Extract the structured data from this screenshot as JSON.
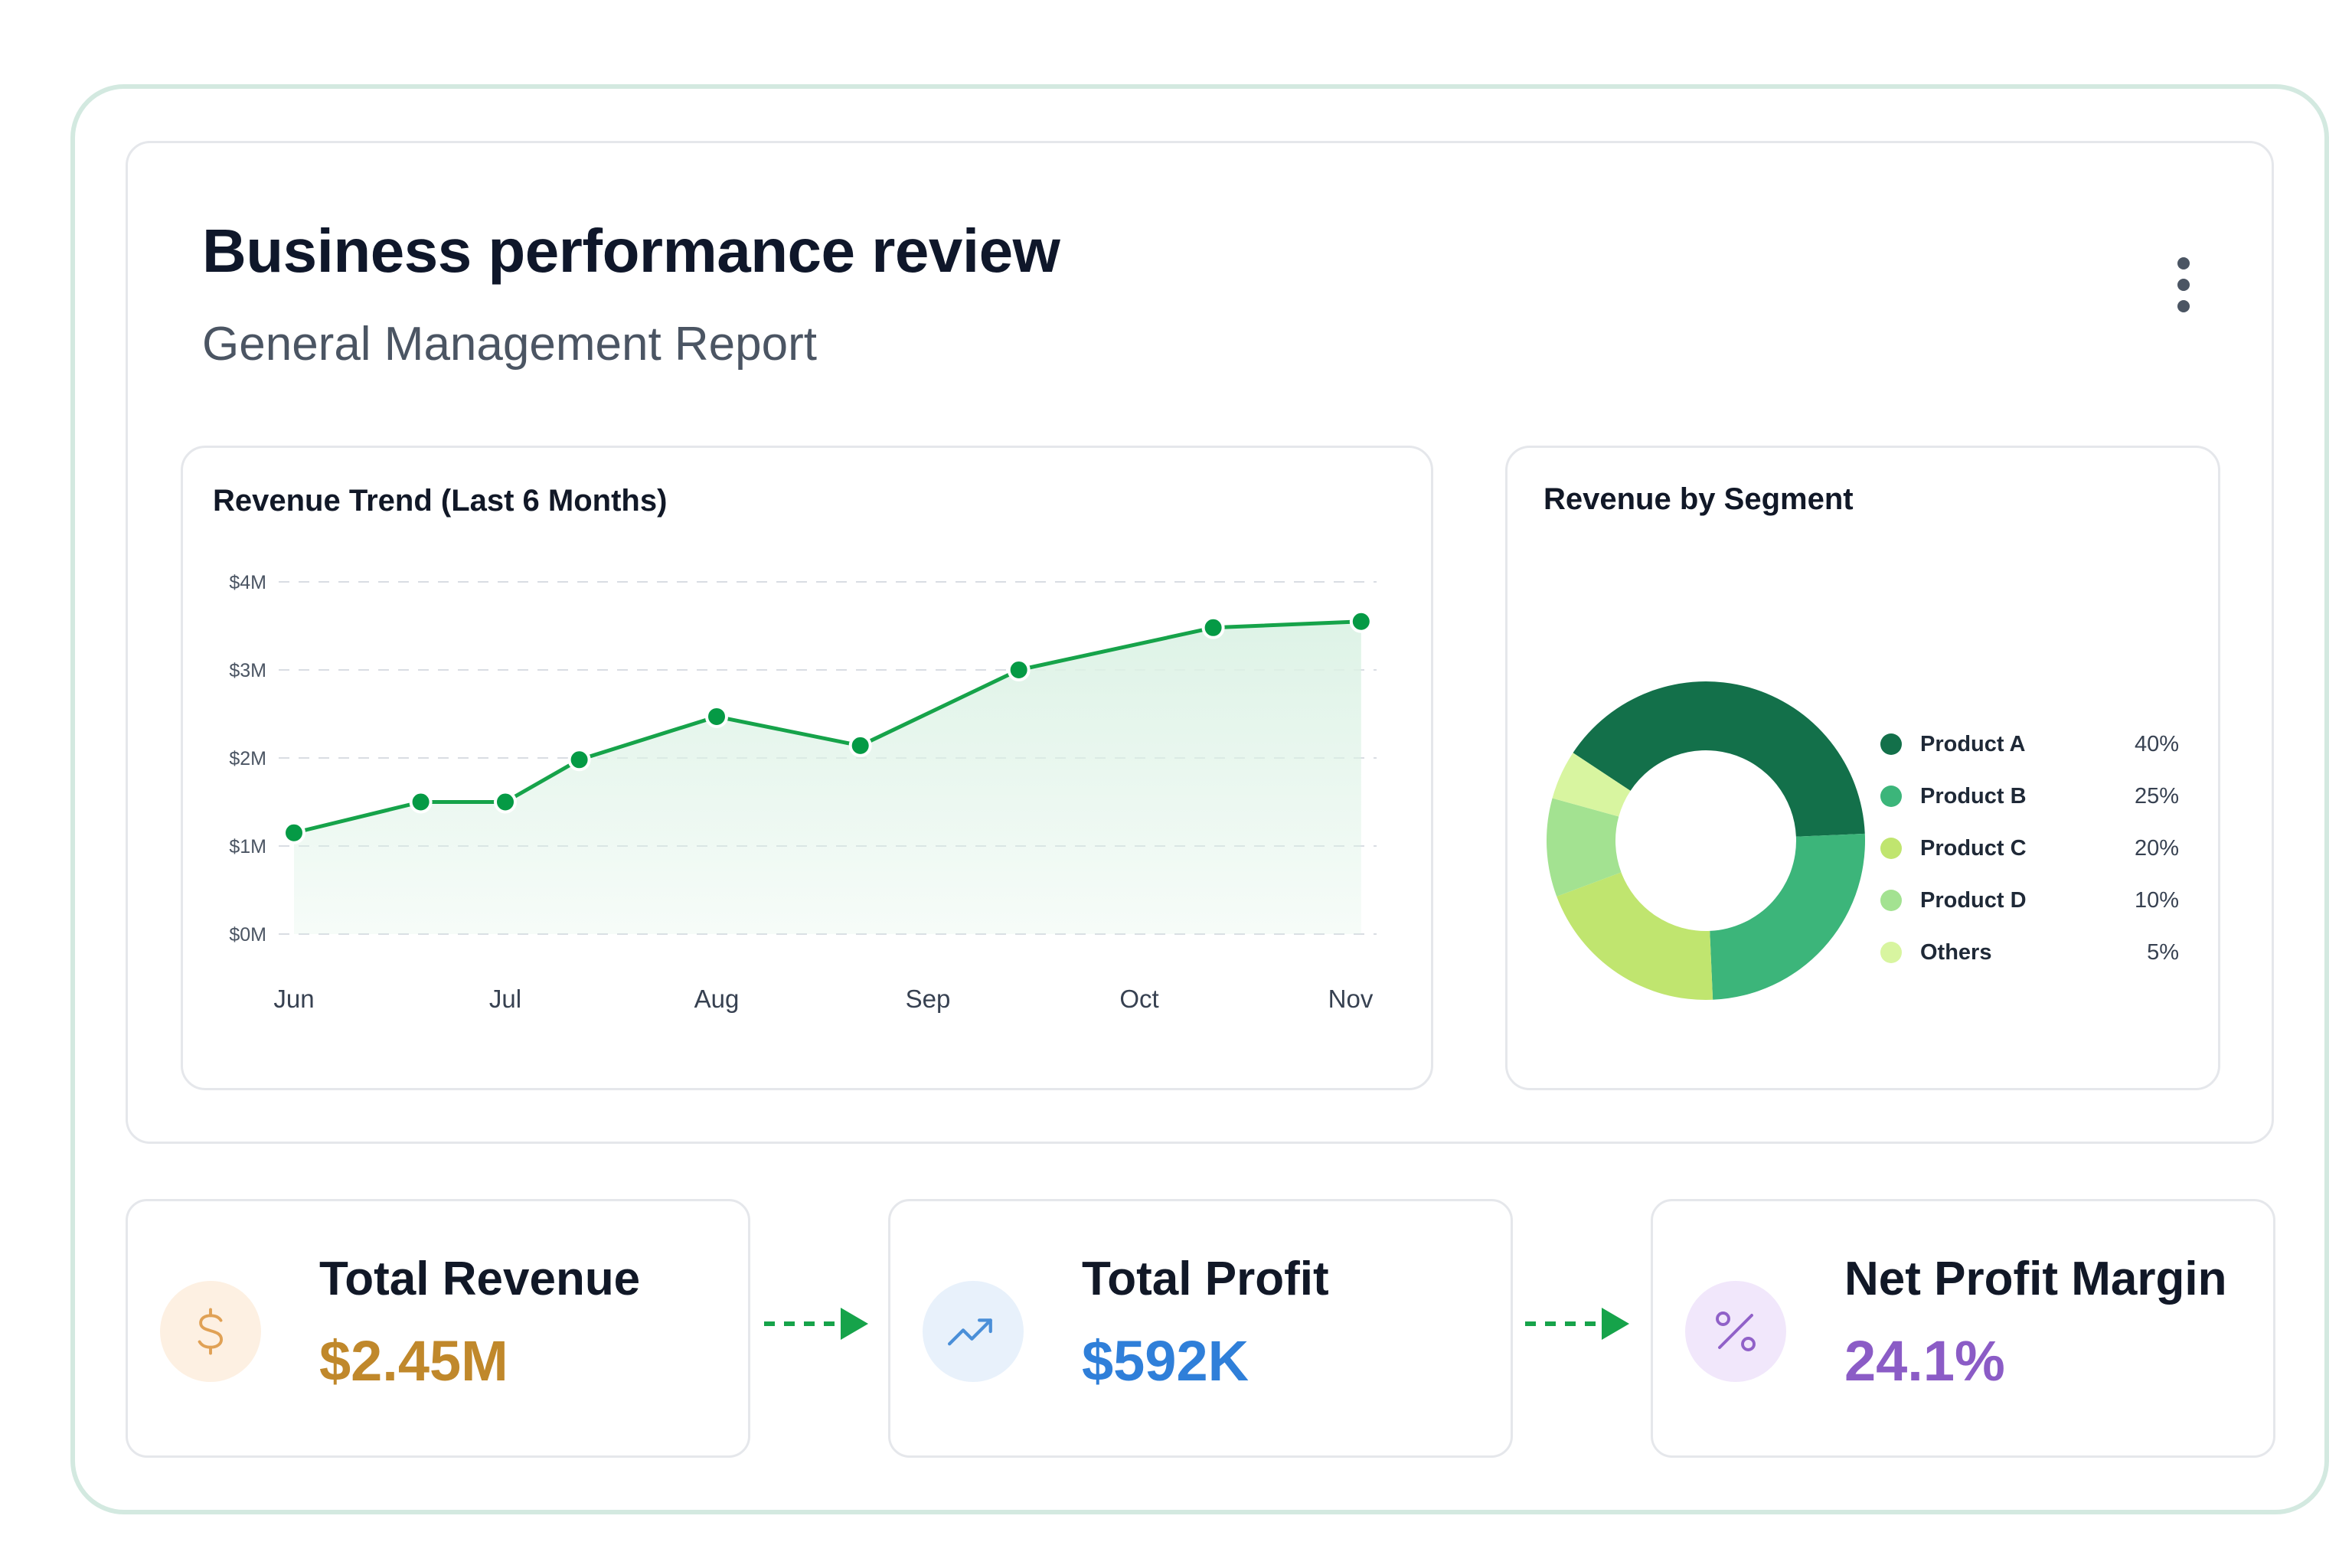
{
  "header": {
    "title": "Business performance review",
    "subtitle": "General Management Report",
    "more_icon": "more-vertical-icon"
  },
  "trend_panel": {
    "title": "Revenue Trend (Last 6 Months)"
  },
  "segment_panel": {
    "title": "Revenue by Segment"
  },
  "chart_data": [
    {
      "type": "area",
      "title": "Revenue Trend (Last 6 Months)",
      "y_ticks": [
        "$0M",
        "$1M",
        "$2M",
        "$3M",
        "$4M"
      ],
      "x_ticks": [
        "Jun",
        "Jul",
        "Aug",
        "Sep",
        "Oct",
        "Nov"
      ],
      "ylim": [
        0,
        4
      ],
      "grid": true,
      "series": [
        {
          "x": [
            0.0,
            0.6,
            1.0,
            1.35,
            2.0,
            2.68,
            3.43,
            4.35,
            5.05
          ],
          "values": [
            1.15,
            1.5,
            1.5,
            1.98,
            2.47,
            2.14,
            3.0,
            3.48,
            3.55
          ]
        }
      ],
      "colors": {
        "line": "#16a34a",
        "point": "#059a45",
        "fill": "#dcf2e5"
      }
    },
    {
      "type": "pie",
      "title": "Revenue by Segment",
      "labels": [
        "Product A",
        "Product B",
        "Product C",
        "Product D",
        "Others"
      ],
      "values": [
        40,
        25,
        20,
        10,
        5
      ],
      "display": [
        "40%",
        "25%",
        "20%",
        "10%",
        "5%"
      ],
      "colors": [
        "#13704a",
        "#3cb57a",
        "#c0e56f",
        "#a3e291",
        "#d8f5a0"
      ],
      "legend": "right"
    }
  ],
  "kpis": [
    {
      "label": "Total Revenue",
      "value": "$2.45M",
      "icon": "dollar-icon",
      "value_color": "#c0882b",
      "icon_bg": "#fdf0e2",
      "icon_color": "#e0a155"
    },
    {
      "label": "Total Profit",
      "value": "$592K",
      "icon": "trending-up-icon",
      "value_color": "#2f7fd9",
      "icon_bg": "#e8f1fb",
      "icon_color": "#4a8fd8"
    },
    {
      "label": "Net Profit Margin",
      "value": "24.1%",
      "icon": "percent-icon",
      "value_color": "#8b5cc6",
      "icon_bg": "#f1e7fb",
      "icon_color": "#9061c8"
    }
  ]
}
